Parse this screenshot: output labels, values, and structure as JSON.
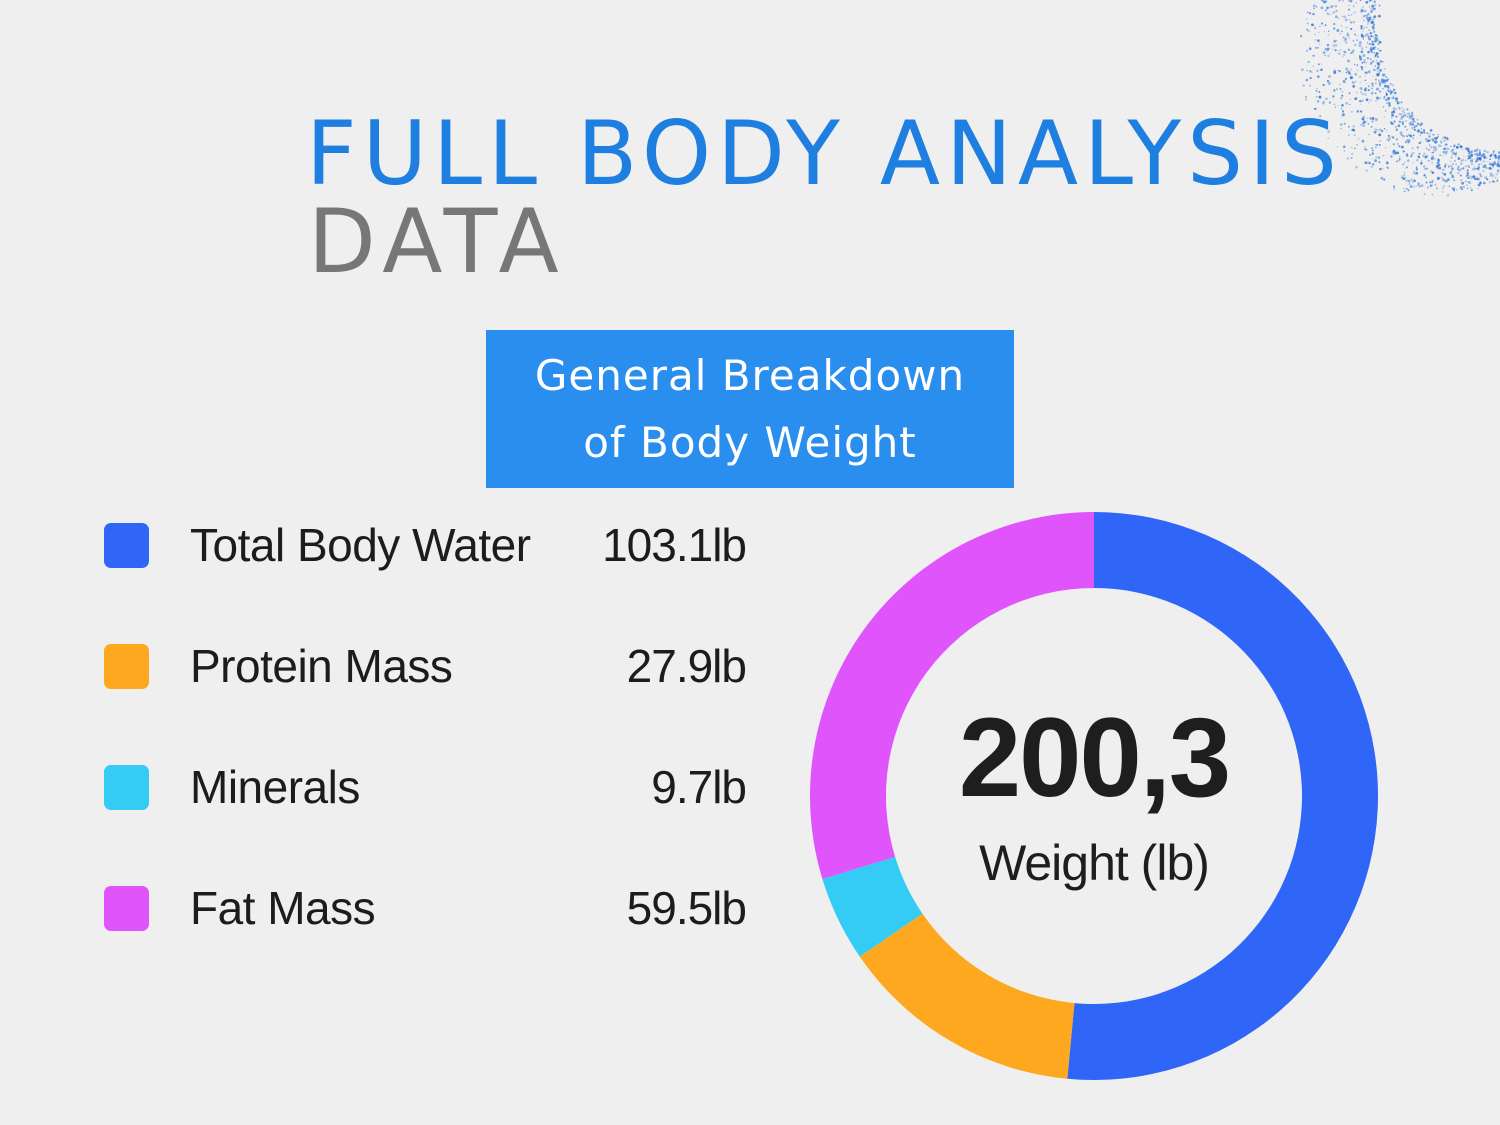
{
  "title": {
    "line1": "FULL BODY ANALYSIS",
    "line2": "DATA"
  },
  "badge": {
    "line1": "General Breakdown",
    "line2": "of Body Weight"
  },
  "colors": {
    "title": "#1f7fe0",
    "subtitle": "#777777",
    "badge": "#2a8eee",
    "background": "#efefef"
  },
  "decoration": {
    "icon": "dotted-arc-icon",
    "color": "#2a72d6"
  },
  "chart_data": {
    "type": "pie",
    "variant": "donut",
    "center": {
      "value": "200,3",
      "label": "Weight (lb)"
    },
    "legend_placement": "left",
    "slices": [
      {
        "label": "Total Body Water",
        "value": 103.1,
        "display": "103.1lb",
        "color": "#2f66f7"
      },
      {
        "label": "Protein Mass",
        "value": 27.9,
        "display": "27.9lb",
        "color": "#fda81f"
      },
      {
        "label": "Minerals",
        "value": 9.7,
        "display": "9.7lb",
        "color": "#34cbf5"
      },
      {
        "label": "Fat Mass",
        "value": 59.5,
        "display": "59.5lb",
        "color": "#e055fb"
      }
    ]
  }
}
